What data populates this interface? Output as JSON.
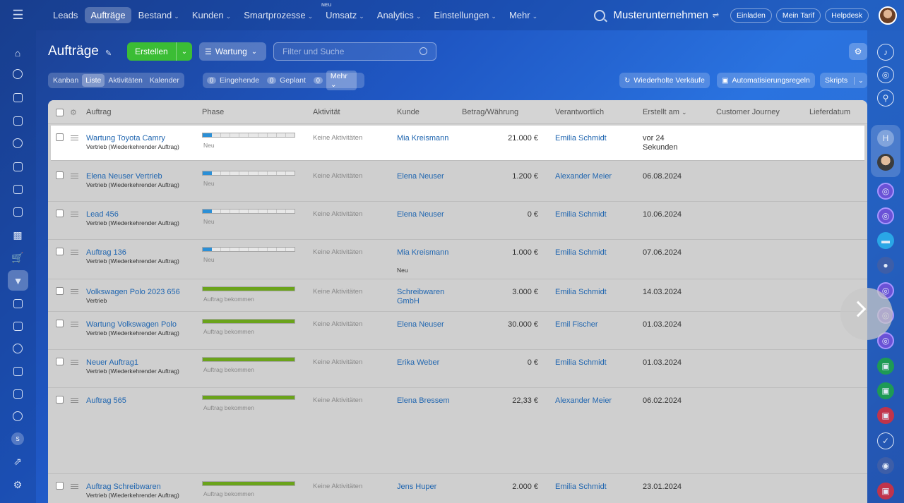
{
  "topnav": {
    "items": [
      {
        "label": "Leads",
        "caret": false,
        "active": false
      },
      {
        "label": "Aufträge",
        "caret": false,
        "active": true
      },
      {
        "label": "Bestand",
        "caret": true,
        "active": false
      },
      {
        "label": "Kunden",
        "caret": true,
        "active": false
      },
      {
        "label": "Smartprozesse",
        "caret": true,
        "active": false
      },
      {
        "label": "Umsatz",
        "caret": true,
        "active": false,
        "badge": "NEU"
      },
      {
        "label": "Analytics",
        "caret": true,
        "active": false
      },
      {
        "label": "Einstellungen",
        "caret": true,
        "active": false
      },
      {
        "label": "Mehr",
        "caret": true,
        "active": false
      }
    ],
    "company": "Musterunternehmen",
    "invite": "Einladen",
    "tariff": "Mein Tarif",
    "helpdesk": "Helpdesk"
  },
  "page": {
    "title": "Aufträge",
    "create_label": "Erstellen",
    "filter_label": "Wartung",
    "search_placeholder": "Filter und Suche"
  },
  "views": [
    "Kanban",
    "Liste",
    "Aktivitäten",
    "Kalender"
  ],
  "active_view": "Liste",
  "counters": [
    {
      "num": "0",
      "label": "Eingehende"
    },
    {
      "num": "0",
      "label": "Geplant"
    },
    {
      "num": "0",
      "label": "Mehr"
    }
  ],
  "actions": {
    "repeat_sales": "Wiederholte Verkäufe",
    "automation": "Automatisierungsregeln",
    "scripts": "Skripts"
  },
  "columns": {
    "auftrag": "Auftrag",
    "phase": "Phase",
    "aktivitaet": "Aktivität",
    "kunde": "Kunde",
    "betrag": "Betrag/Währung",
    "verantwortlich": "Verantwortlich",
    "erstellt": "Erstellt am",
    "journey": "Customer Journey",
    "lieferdatum": "Lieferdatum"
  },
  "rows": [
    {
      "title": "Wartung Toyota Camry",
      "sub": "Vertrieb (Wiederkehrender Auftrag)",
      "phase_label": "Neu",
      "phase_fill": 0.1,
      "phase_color": "#2b8fd6",
      "activity": "Keine Aktivitäten",
      "client": "Mia Kreismann",
      "client_sub": "",
      "amount": "21.000 €",
      "responsible": "Emilia Schmidt",
      "created": "vor 24 Sekunden"
    },
    {
      "title": "Elena Neuser Vertrieb",
      "sub": "Vertrieb (Wiederkehrender Auftrag)",
      "phase_label": "Neu",
      "phase_fill": 0.1,
      "phase_color": "#2b8fd6",
      "activity": "Keine Aktivitäten",
      "client": "Elena Neuser",
      "client_sub": "",
      "amount": "1.200 €",
      "responsible": "Alexander Meier",
      "created": "06.08.2024"
    },
    {
      "title": "Lead 456",
      "sub": "Vertrieb (Wiederkehrender Auftrag)",
      "phase_label": "Neu",
      "phase_fill": 0.1,
      "phase_color": "#2b8fd6",
      "activity": "Keine Aktivitäten",
      "client": "Elena Neuser",
      "client_sub": "",
      "amount": "0 €",
      "responsible": "Emilia Schmidt",
      "created": "10.06.2024"
    },
    {
      "title": "Auftrag 136",
      "sub": "Vertrieb (Wiederkehrender Auftrag)",
      "phase_label": "Neu",
      "phase_fill": 0.1,
      "phase_color": "#2b8fd6",
      "activity": "Keine Aktivitäten",
      "client": "Mia Kreismann",
      "client_sub": "Neu",
      "amount": "1.000 €",
      "responsible": "Emilia Schmidt",
      "created": "07.06.2024"
    },
    {
      "title": "Volkswagen Polo 2023 656",
      "sub": "Vertrieb",
      "phase_label": "Auftrag bekommen",
      "phase_fill": 1,
      "phase_color": "#6aa31b",
      "activity": "Keine Aktivitäten",
      "client": "Schreibwaren GmbH",
      "client_sub": "",
      "amount": "3.000 €",
      "responsible": "Emilia Schmidt",
      "created": "14.03.2024"
    },
    {
      "title": "Wartung Volkswagen Polo",
      "sub": "Vertrieb (Wiederkehrender Auftrag)",
      "phase_label": "Auftrag bekommen",
      "phase_fill": 1,
      "phase_color": "#6aa31b",
      "activity": "Keine Aktivitäten",
      "client": "Elena Neuser",
      "client_sub": "",
      "amount": "30.000 €",
      "responsible": "Emil Fischer",
      "created": "01.03.2024"
    },
    {
      "title": "Neuer Auftrag1",
      "sub": "Vertrieb (Wiederkehrender Auftrag)",
      "phase_label": "Auftrag bekommen",
      "phase_fill": 1,
      "phase_color": "#6aa31b",
      "activity": "Keine Aktivitäten",
      "client": "Erika Weber",
      "client_sub": "",
      "amount": "0 €",
      "responsible": "Emilia Schmidt",
      "created": "01.03.2024"
    },
    {
      "title": "Auftrag 565",
      "sub": "",
      "phase_label": "Auftrag bekommen",
      "phase_fill": 1,
      "phase_color": "#6aa31b",
      "activity": "Keine Aktivitäten",
      "client": "Elena Bressem",
      "client_sub": "",
      "amount": "22,33 €",
      "responsible": "Alexander Meier",
      "created": "06.02.2024"
    },
    {
      "title": "Auftrag Schreibwaren",
      "sub": "Vertrieb (Wiederkehrender Auftrag)",
      "phase_label": "Auftrag bekommen",
      "phase_fill": 1,
      "phase_color": "#6aa31b",
      "activity": "Keine Aktivitäten",
      "client": "Jens Huper",
      "client_sub": "",
      "amount": "2.000 €",
      "responsible": "Emilia Schmidt",
      "created": "23.01.2024"
    }
  ],
  "user_initial": "S"
}
